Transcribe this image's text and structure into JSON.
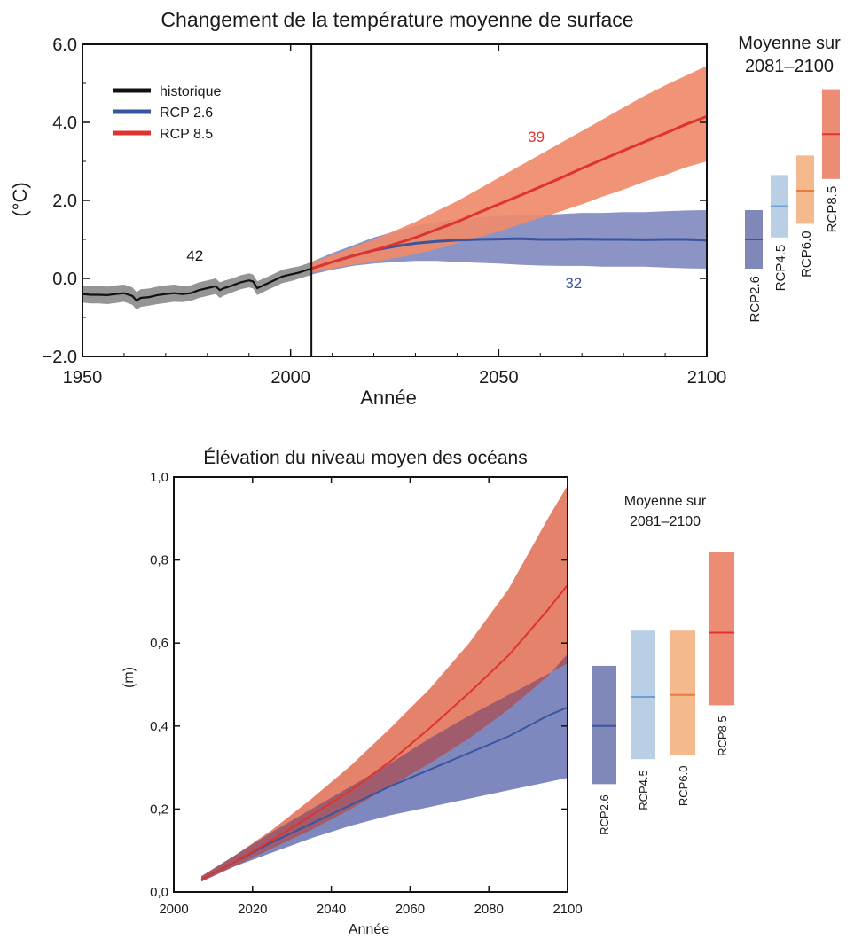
{
  "colors": {
    "historique": "#111111",
    "historique_band": "#8c8c8c",
    "rcp26": "#3a55a0",
    "rcp26_band": "#7e88bf",
    "rcp85": "#e0332d",
    "rcp85_band": "#ef8a6a",
    "rcp85_band_sea": "#e4826b",
    "overlap_sea": "#a05c6c",
    "rcp45_bar": "#b8cfe6",
    "rcp45_line": "#6d9fd1",
    "rcp60_bar": "#f4b98c",
    "rcp60_line": "#e77a3d",
    "rcp85_bar": "#ec8c74",
    "rcp26_bar": "#7f88b8"
  },
  "chart_data": [
    {
      "type": "line",
      "title": "Changement de la température moyenne de surface",
      "xlabel": "Année",
      "ylabel": "(°C)",
      "xlim": [
        1950,
        2100
      ],
      "ylim": [
        -2.0,
        6.0
      ],
      "xticks": [
        {
          "value": 1950,
          "label": "1950"
        },
        {
          "value": 2000,
          "label": "2000"
        },
        {
          "value": 2050,
          "label": "2050"
        },
        {
          "value": 2100,
          "label": "2100"
        }
      ],
      "yticks": [
        {
          "value": -2.0,
          "label": "−2.0"
        },
        {
          "value": 0.0,
          "label": "0.0"
        },
        {
          "value": 2.0,
          "label": "2.0"
        },
        {
          "value": 4.0,
          "label": "4.0"
        },
        {
          "value": 6.0,
          "label": "6.0"
        }
      ],
      "vline": 2005,
      "legend": {
        "position": "top-left",
        "entries": [
          "historique",
          "RCP 2.6",
          "RCP 8.5"
        ]
      },
      "series": [
        {
          "name": "historique",
          "color_key": "historique",
          "x": [
            1950,
            1952,
            1954,
            1956,
            1958,
            1960,
            1962,
            1963,
            1964,
            1966,
            1968,
            1970,
            1972,
            1974,
            1976,
            1978,
            1980,
            1982,
            1983,
            1984,
            1986,
            1988,
            1990,
            1991,
            1992,
            1994,
            1996,
            1998,
            2000,
            2002,
            2004,
            2005
          ],
          "y": [
            -0.4,
            -0.42,
            -0.42,
            -0.43,
            -0.4,
            -0.38,
            -0.45,
            -0.57,
            -0.5,
            -0.48,
            -0.43,
            -0.4,
            -0.38,
            -0.4,
            -0.38,
            -0.3,
            -0.25,
            -0.2,
            -0.3,
            -0.25,
            -0.18,
            -0.1,
            -0.05,
            -0.08,
            -0.25,
            -0.15,
            -0.05,
            0.05,
            0.1,
            0.15,
            0.22,
            0.25
          ],
          "low": [
            -0.62,
            -0.64,
            -0.64,
            -0.66,
            -0.63,
            -0.6,
            -0.68,
            -0.8,
            -0.73,
            -0.7,
            -0.66,
            -0.63,
            -0.6,
            -0.61,
            -0.58,
            -0.5,
            -0.45,
            -0.4,
            -0.5,
            -0.44,
            -0.36,
            -0.28,
            -0.23,
            -0.26,
            -0.43,
            -0.32,
            -0.22,
            -0.12,
            -0.07,
            -0.01,
            0.06,
            0.08
          ],
          "high": [
            -0.18,
            -0.2,
            -0.2,
            -0.21,
            -0.18,
            -0.16,
            -0.23,
            -0.35,
            -0.28,
            -0.26,
            -0.21,
            -0.18,
            -0.16,
            -0.19,
            -0.18,
            -0.1,
            -0.05,
            0.0,
            -0.1,
            -0.06,
            0.0,
            0.08,
            0.13,
            0.1,
            -0.07,
            0.02,
            0.12,
            0.22,
            0.27,
            0.31,
            0.38,
            0.42
          ],
          "annotation": {
            "text": "42",
            "x": 1977,
            "y": 0.45
          }
        },
        {
          "name": "RCP 2.6",
          "color_key": "rcp26",
          "x": [
            2005,
            2010,
            2015,
            2020,
            2025,
            2030,
            2035,
            2040,
            2045,
            2050,
            2055,
            2060,
            2065,
            2070,
            2075,
            2080,
            2085,
            2090,
            2095,
            2100
          ],
          "y": [
            0.25,
            0.42,
            0.58,
            0.72,
            0.82,
            0.9,
            0.95,
            0.98,
            1.0,
            1.01,
            1.02,
            1.0,
            1.0,
            1.01,
            1.0,
            1.0,
            0.99,
            1.0,
            1.0,
            0.98
          ],
          "low": [
            0.1,
            0.22,
            0.32,
            0.38,
            0.42,
            0.45,
            0.45,
            0.42,
            0.4,
            0.38,
            0.35,
            0.33,
            0.32,
            0.32,
            0.3,
            0.3,
            0.3,
            0.28,
            0.26,
            0.25
          ],
          "high": [
            0.42,
            0.65,
            0.85,
            1.05,
            1.2,
            1.35,
            1.45,
            1.52,
            1.56,
            1.6,
            1.62,
            1.63,
            1.65,
            1.68,
            1.68,
            1.7,
            1.7,
            1.72,
            1.74,
            1.75
          ],
          "annotation": {
            "text": "32",
            "x": 2068,
            "y": -0.25
          }
        },
        {
          "name": "RCP 8.5",
          "color_key": "rcp85",
          "x": [
            2005,
            2010,
            2015,
            2020,
            2025,
            2030,
            2035,
            2040,
            2045,
            2050,
            2055,
            2060,
            2065,
            2070,
            2075,
            2080,
            2085,
            2090,
            2095,
            2100
          ],
          "y": [
            0.25,
            0.42,
            0.58,
            0.72,
            0.88,
            1.05,
            1.25,
            1.45,
            1.68,
            1.9,
            2.12,
            2.35,
            2.58,
            2.82,
            3.05,
            3.28,
            3.5,
            3.72,
            3.95,
            4.15
          ],
          "low": [
            0.15,
            0.25,
            0.35,
            0.42,
            0.52,
            0.62,
            0.75,
            0.9,
            1.05,
            1.2,
            1.38,
            1.55,
            1.72,
            1.9,
            2.1,
            2.28,
            2.48,
            2.65,
            2.85,
            3.0
          ],
          "high": [
            0.4,
            0.6,
            0.8,
            1.0,
            1.22,
            1.45,
            1.72,
            1.98,
            2.28,
            2.58,
            2.88,
            3.18,
            3.48,
            3.78,
            4.08,
            4.38,
            4.68,
            4.95,
            5.2,
            5.45
          ],
          "annotation": {
            "text": "39",
            "x": 2059,
            "y": 3.5
          }
        }
      ],
      "side_panel": {
        "title_lines": [
          "Moyenne sur",
          "2081–2100"
        ],
        "bars": [
          {
            "name": "RCP2.6",
            "low": 0.25,
            "mean": 1.0,
            "high": 1.75,
            "bar_key": "rcp26_bar",
            "line_key": "rcp26"
          },
          {
            "name": "RCP4.5",
            "low": 1.05,
            "mean": 1.85,
            "high": 2.65,
            "bar_key": "rcp45_bar",
            "line_key": "rcp45_line"
          },
          {
            "name": "RCP6.0",
            "low": 1.4,
            "mean": 2.25,
            "high": 3.15,
            "bar_key": "rcp60_bar",
            "line_key": "rcp60_line"
          },
          {
            "name": "RCP8.5",
            "low": 2.55,
            "mean": 3.7,
            "high": 4.85,
            "bar_key": "rcp85_bar",
            "line_key": "rcp85"
          }
        ]
      }
    },
    {
      "type": "line",
      "title": "Élévation du niveau moyen des océans",
      "xlabel": "Année",
      "ylabel": "(m)",
      "xlim": [
        2000,
        2100
      ],
      "ylim": [
        0.0,
        1.0
      ],
      "xticks": [
        {
          "value": 2000,
          "label": "2000"
        },
        {
          "value": 2020,
          "label": "2020"
        },
        {
          "value": 2040,
          "label": "2040"
        },
        {
          "value": 2060,
          "label": "2060"
        },
        {
          "value": 2080,
          "label": "2080"
        },
        {
          "value": 2100,
          "label": "2100"
        }
      ],
      "yticks": [
        {
          "value": 0.0,
          "label": "0,0"
        },
        {
          "value": 0.2,
          "label": "0,2"
        },
        {
          "value": 0.4,
          "label": "0,4"
        },
        {
          "value": 0.6,
          "label": "0,6"
        },
        {
          "value": 0.8,
          "label": "0,8"
        },
        {
          "value": 1.0,
          "label": "1,0"
        }
      ],
      "series": [
        {
          "name": "RCP 2.6",
          "color_key": "rcp26",
          "x": [
            2007,
            2015,
            2025,
            2035,
            2045,
            2055,
            2065,
            2075,
            2085,
            2095,
            2100
          ],
          "y": [
            0.03,
            0.07,
            0.12,
            0.165,
            0.21,
            0.255,
            0.295,
            0.335,
            0.375,
            0.425,
            0.445
          ],
          "low": [
            0.025,
            0.06,
            0.095,
            0.13,
            0.16,
            0.185,
            0.205,
            0.225,
            0.245,
            0.265,
            0.275
          ],
          "high": [
            0.038,
            0.085,
            0.145,
            0.2,
            0.255,
            0.31,
            0.37,
            0.425,
            0.475,
            0.525,
            0.55
          ]
        },
        {
          "name": "RCP 8.5",
          "color_key": "rcp85",
          "x": [
            2007,
            2015,
            2025,
            2035,
            2045,
            2055,
            2065,
            2075,
            2085,
            2095,
            2100
          ],
          "y": [
            0.03,
            0.07,
            0.125,
            0.185,
            0.245,
            0.315,
            0.395,
            0.48,
            0.57,
            0.68,
            0.74
          ],
          "low": [
            0.025,
            0.06,
            0.105,
            0.15,
            0.2,
            0.255,
            0.31,
            0.37,
            0.44,
            0.52,
            0.575
          ],
          "high": [
            0.038,
            0.085,
            0.15,
            0.225,
            0.305,
            0.395,
            0.49,
            0.6,
            0.73,
            0.9,
            0.98
          ]
        }
      ],
      "side_panel": {
        "title_lines": [
          "Moyenne sur",
          "2081–2100"
        ],
        "bars": [
          {
            "name": "RCP2.6",
            "low": 0.26,
            "mean": 0.4,
            "high": 0.545,
            "bar_key": "rcp26_bar",
            "line_key": "rcp26"
          },
          {
            "name": "RCP4.5",
            "low": 0.32,
            "mean": 0.47,
            "high": 0.63,
            "bar_key": "rcp45_bar",
            "line_key": "rcp45_line"
          },
          {
            "name": "RCP6.0",
            "low": 0.33,
            "mean": 0.475,
            "high": 0.63,
            "bar_key": "rcp60_bar",
            "line_key": "rcp60_line"
          },
          {
            "name": "RCP8.5",
            "low": 0.45,
            "mean": 0.625,
            "high": 0.82,
            "bar_key": "rcp85_bar",
            "line_key": "rcp85"
          }
        ]
      }
    }
  ]
}
